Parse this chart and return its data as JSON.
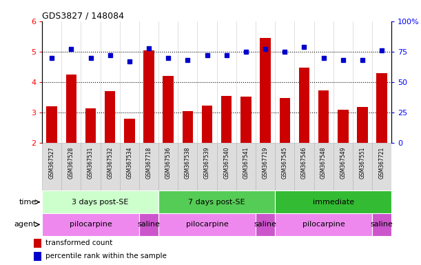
{
  "title": "GDS3827 / 148084",
  "samples": [
    "GSM367527",
    "GSM367528",
    "GSM367531",
    "GSM367532",
    "GSM367534",
    "GSM367718",
    "GSM367536",
    "GSM367538",
    "GSM367539",
    "GSM367540",
    "GSM367541",
    "GSM367719",
    "GSM367545",
    "GSM367546",
    "GSM367548",
    "GSM367549",
    "GSM367551",
    "GSM367721"
  ],
  "bar_values": [
    3.2,
    4.25,
    3.15,
    3.7,
    2.8,
    5.05,
    4.2,
    3.05,
    3.22,
    3.55,
    3.52,
    5.45,
    3.47,
    4.47,
    3.72,
    3.1,
    3.18,
    4.3
  ],
  "dot_values": [
    70,
    77,
    70,
    72,
    67,
    78,
    70,
    68,
    72,
    72,
    75,
    77,
    75,
    79,
    70,
    68,
    68,
    76
  ],
  "bar_color": "#cc0000",
  "dot_color": "#0000cc",
  "ylim_left": [
    2,
    6
  ],
  "ylim_right": [
    0,
    100
  ],
  "yticks_left": [
    2,
    3,
    4,
    5,
    6
  ],
  "yticks_right": [
    0,
    25,
    50,
    75,
    100
  ],
  "ytick_labels_right": [
    "0",
    "25",
    "50",
    "75",
    "100%"
  ],
  "hlines": [
    3,
    4,
    5
  ],
  "time_groups": [
    {
      "label": "3 days post-SE",
      "start": 0,
      "end": 6,
      "color": "#ccffcc"
    },
    {
      "label": "7 days post-SE",
      "start": 6,
      "end": 12,
      "color": "#55cc55"
    },
    {
      "label": "immediate",
      "start": 12,
      "end": 18,
      "color": "#33bb33"
    }
  ],
  "agent_groups": [
    {
      "label": "pilocarpine",
      "start": 0,
      "end": 5,
      "color": "#ee88ee"
    },
    {
      "label": "saline",
      "start": 5,
      "end": 6,
      "color": "#cc55cc"
    },
    {
      "label": "pilocarpine",
      "start": 6,
      "end": 11,
      "color": "#ee88ee"
    },
    {
      "label": "saline",
      "start": 11,
      "end": 12,
      "color": "#cc55cc"
    },
    {
      "label": "pilocarpine",
      "start": 12,
      "end": 17,
      "color": "#ee88ee"
    },
    {
      "label": "saline",
      "start": 17,
      "end": 18,
      "color": "#cc55cc"
    }
  ],
  "legend_bar_label": "transformed count",
  "legend_dot_label": "percentile rank within the sample",
  "bar_bottom": 2,
  "time_label": "time",
  "agent_label": "agent",
  "sample_bg_color": "#dddddd",
  "sample_border_color": "#bbbbbb"
}
